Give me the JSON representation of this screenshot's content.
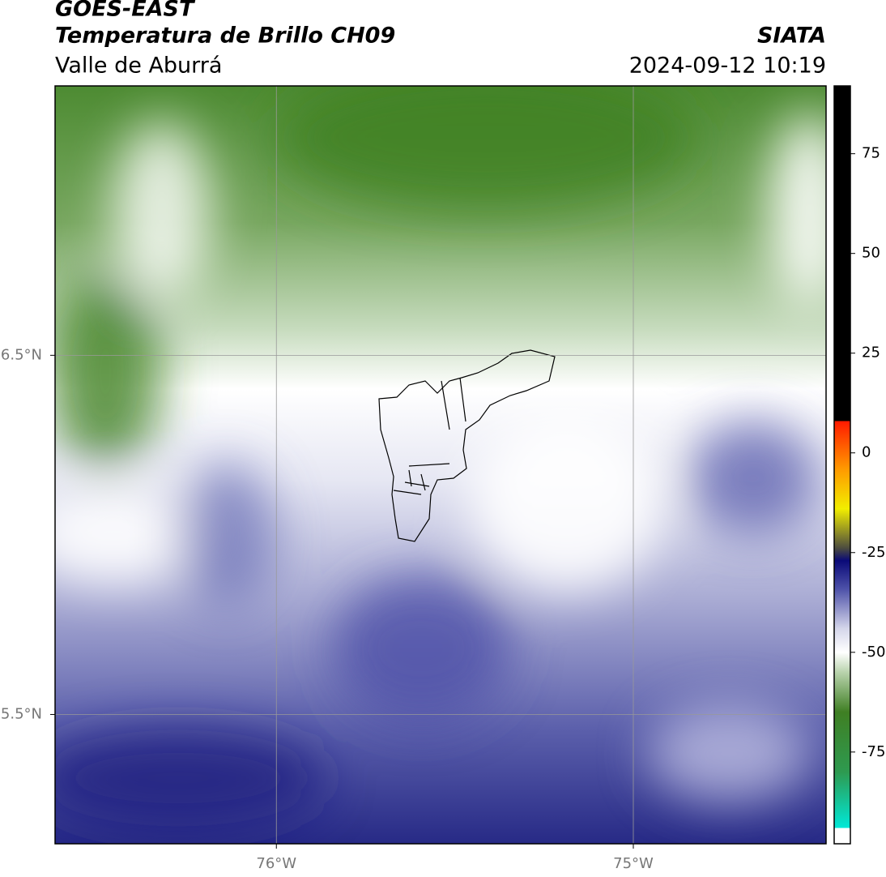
{
  "header": {
    "title": "GOES-EAST",
    "subtitle": "Temperatura de Brillo CH09",
    "region": "Valle de Aburrá",
    "source": "SIATA",
    "datetime": "2024-09-12 10:19"
  },
  "map": {
    "xlim": [
      -76.62,
      -74.46
    ],
    "ylim": [
      5.14,
      7.25
    ],
    "xticks": [
      {
        "value": -76,
        "label": "76°W"
      },
      {
        "value": -75,
        "label": "75°W"
      }
    ],
    "yticks": [
      {
        "value": 5.5,
        "label": "5.5°N"
      },
      {
        "value": 6.5,
        "label": "6.5°N"
      }
    ],
    "grid": true
  },
  "colorbar": {
    "lim": [
      -98,
      92
    ],
    "ticks": [
      -75,
      -50,
      -25,
      0,
      25,
      50,
      75
    ],
    "stops": [
      {
        "value": -98,
        "color": "#ffffff"
      },
      {
        "value": -94,
        "color": "#ffffff"
      },
      {
        "value": -94,
        "color": "#00e8d8"
      },
      {
        "value": -80,
        "color": "#2e9a50"
      },
      {
        "value": -65,
        "color": "#3f7f23"
      },
      {
        "value": -55,
        "color": "#b9d3ad"
      },
      {
        "value": -50,
        "color": "#ffffff"
      },
      {
        "value": -44,
        "color": "#d4d5ea"
      },
      {
        "value": -34,
        "color": "#4c50a8"
      },
      {
        "value": -27,
        "color": "#0a0a78"
      },
      {
        "value": -24,
        "color": "#4a4a40"
      },
      {
        "value": -14,
        "color": "#f2ee00"
      },
      {
        "value": -4,
        "color": "#ff9900"
      },
      {
        "value": 8,
        "color": "#ff1a00"
      },
      {
        "value": 8,
        "color": "#000000"
      },
      {
        "value": 92,
        "color": "#000000"
      }
    ]
  }
}
